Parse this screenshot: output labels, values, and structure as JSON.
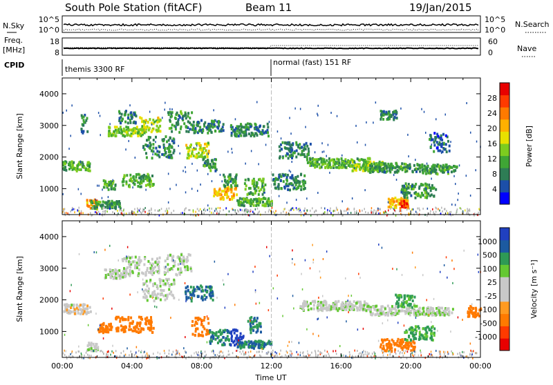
{
  "header": {
    "title": "South Pole Station (fitACF)",
    "beam": "Beam 11",
    "date": "19/Jan/2015"
  },
  "strips": {
    "nsky_label": "N.Sky",
    "nsky_ticks": [
      "10^5",
      "10^0"
    ],
    "nsearch_label": "N.Search",
    "nsearch_ticks": [
      "10^5",
      "10^0"
    ],
    "freq_label": "Freq.",
    "freq_unit": "[MHz]",
    "freq_ticks": [
      "18",
      "8"
    ],
    "nave_label": "Nave",
    "nave_ticks": [
      "60",
      "0"
    ],
    "cpid_label": "CPID",
    "cpid_segments": [
      {
        "start_hour": 0,
        "end_hour": 12,
        "label": "themis 3300 RF"
      },
      {
        "start_hour": 12,
        "end_hour": 24,
        "label": "normal (fast) 151 RF"
      }
    ]
  },
  "colors": {
    "power": [
      "#0000ff",
      "#1c4fa8",
      "#2e7d55",
      "#3fa535",
      "#7dcc1f",
      "#e8e000",
      "#ffb000",
      "#ff7a00",
      "#ff3a00",
      "#e80000"
    ],
    "velocity": [
      "#e80000",
      "#ff3a00",
      "#ff7a00",
      "#ff9a20",
      "#c8c8c8",
      "#c8c8c8",
      "#64c832",
      "#2e9a55",
      "#1c5aa0",
      "#2040c0"
    ],
    "ground": "#b4b4b4"
  },
  "chart_data": [
    {
      "type": "heatmap",
      "panel": "power",
      "ylabel": "Slant Range [km]",
      "xlabel": "",
      "ylim": [
        180,
        4500
      ],
      "xlim": [
        0,
        24
      ],
      "yticks": [
        "1000",
        "2000",
        "3000",
        "4000"
      ],
      "colorbar": {
        "label": "Power [dB]",
        "range": [
          0,
          32
        ],
        "ticks": [
          "4",
          "8",
          "12",
          "16",
          "20",
          "24",
          "28"
        ]
      },
      "blobs": [
        {
          "t0": 0.0,
          "t1": 1.6,
          "r0": 1600,
          "r1": 1900,
          "v": 12
        },
        {
          "t0": 1.0,
          "t1": 1.4,
          "r0": 2800,
          "r1": 3400,
          "v": 8
        },
        {
          "t0": 1.3,
          "t1": 2.0,
          "r0": 420,
          "r1": 700,
          "v": 22
        },
        {
          "t0": 1.6,
          "t1": 3.3,
          "r0": 400,
          "r1": 650,
          "v": 10
        },
        {
          "t0": 2.3,
          "t1": 3.0,
          "r0": 1000,
          "r1": 1300,
          "v": 12
        },
        {
          "t0": 2.6,
          "t1": 4.6,
          "r0": 2700,
          "r1": 3000,
          "v": 14
        },
        {
          "t0": 3.2,
          "t1": 4.2,
          "r0": 3100,
          "r1": 3500,
          "v": 8
        },
        {
          "t0": 3.4,
          "t1": 5.2,
          "r0": 1100,
          "r1": 1500,
          "v": 12
        },
        {
          "t0": 4.4,
          "t1": 5.6,
          "r0": 2800,
          "r1": 3300,
          "v": 16
        },
        {
          "t0": 4.6,
          "t1": 6.4,
          "r0": 2000,
          "r1": 2700,
          "v": 8
        },
        {
          "t0": 6.0,
          "t1": 7.4,
          "r0": 2800,
          "r1": 3500,
          "v": 10
        },
        {
          "t0": 7.0,
          "t1": 8.4,
          "r0": 2000,
          "r1": 2500,
          "v": 16
        },
        {
          "t0": 7.4,
          "t1": 9.2,
          "r0": 2800,
          "r1": 3200,
          "v": 8
        },
        {
          "t0": 8.0,
          "t1": 8.8,
          "r0": 1600,
          "r1": 2000,
          "v": 10
        },
        {
          "t0": 8.6,
          "t1": 10.0,
          "r0": 700,
          "r1": 1100,
          "v": 20
        },
        {
          "t0": 9.2,
          "t1": 10.0,
          "r0": 1100,
          "r1": 1500,
          "v": 10
        },
        {
          "t0": 9.6,
          "t1": 11.8,
          "r0": 2700,
          "r1": 3100,
          "v": 8
        },
        {
          "t0": 10.0,
          "t1": 12.0,
          "r0": 500,
          "r1": 750,
          "v": 12
        },
        {
          "t0": 10.4,
          "t1": 11.6,
          "r0": 850,
          "r1": 1350,
          "v": 12
        },
        {
          "t0": 12.0,
          "t1": 14.0,
          "r0": 1000,
          "r1": 1500,
          "v": 8
        },
        {
          "t0": 12.4,
          "t1": 14.2,
          "r0": 2000,
          "r1": 2500,
          "v": 8
        },
        {
          "t0": 14.0,
          "t1": 17.6,
          "r0": 1700,
          "r1": 2000,
          "v": 12
        },
        {
          "t0": 16.6,
          "t1": 18.4,
          "r0": 1600,
          "r1": 1900,
          "v": 14
        },
        {
          "t0": 17.6,
          "t1": 20.5,
          "r0": 1550,
          "r1": 1850,
          "v": 10
        },
        {
          "t0": 18.2,
          "t1": 19.2,
          "r0": 3200,
          "r1": 3500,
          "v": 8
        },
        {
          "t0": 18.6,
          "t1": 19.8,
          "r0": 400,
          "r1": 750,
          "v": 20
        },
        {
          "t0": 19.3,
          "t1": 19.8,
          "r0": 450,
          "r1": 650,
          "v": 28
        },
        {
          "t0": 19.4,
          "t1": 21.4,
          "r0": 750,
          "r1": 1200,
          "v": 10
        },
        {
          "t0": 20.6,
          "t1": 22.6,
          "r0": 1500,
          "r1": 1800,
          "v": 10
        },
        {
          "t0": 21.0,
          "t1": 22.2,
          "r0": 2200,
          "r1": 2800,
          "v": 6
        }
      ]
    },
    {
      "type": "heatmap",
      "panel": "velocity",
      "ylabel": "Slant Range [km]",
      "xlabel": "Time UT",
      "ylim": [
        180,
        4500
      ],
      "xlim": [
        0,
        24
      ],
      "yticks": [
        "1000",
        "2000",
        "3000",
        "4000"
      ],
      "xticks": [
        "00:00",
        "04:00",
        "08:00",
        "12:00",
        "16:00",
        "20:00",
        "00:00"
      ],
      "colorbar": {
        "label": "Velocity [m s⁻¹]",
        "ticks": [
          "1000",
          "500",
          "100",
          "25",
          "-25",
          "-100",
          "-500",
          "-1000"
        ]
      },
      "blobs": [
        {
          "t0": 0.0,
          "t1": 1.6,
          "r0": 1600,
          "r1": 1900,
          "v": -25
        },
        {
          "t0": 1.3,
          "t1": 2.0,
          "r0": 420,
          "r1": 700,
          "v": 0
        },
        {
          "t0": 2.4,
          "t1": 3.6,
          "r0": 2700,
          "r1": 3000,
          "v": 0
        },
        {
          "t0": 2.0,
          "t1": 2.8,
          "r0": 1000,
          "r1": 1300,
          "v": -300
        },
        {
          "t0": 3.0,
          "t1": 5.2,
          "r0": 1000,
          "r1": 1500,
          "v": -300
        },
        {
          "t0": 3.4,
          "t1": 5.6,
          "r0": 2800,
          "r1": 3400,
          "v": 0
        },
        {
          "t0": 4.6,
          "t1": 6.4,
          "r0": 2000,
          "r1": 2700,
          "v": 0
        },
        {
          "t0": 5.8,
          "t1": 7.4,
          "r0": 2800,
          "r1": 3500,
          "v": 0
        },
        {
          "t0": 7.0,
          "t1": 8.6,
          "r0": 2000,
          "r1": 2500,
          "v": 300
        },
        {
          "t0": 7.4,
          "t1": 8.4,
          "r0": 900,
          "r1": 1500,
          "v": -300
        },
        {
          "t0": 8.4,
          "t1": 9.6,
          "r0": 600,
          "r1": 1100,
          "v": 300
        },
        {
          "t0": 9.6,
          "t1": 10.4,
          "r0": 600,
          "r1": 1100,
          "v": 700
        },
        {
          "t0": 10.0,
          "t1": 12.0,
          "r0": 500,
          "r1": 750,
          "v": 300
        },
        {
          "t0": 10.6,
          "t1": 11.4,
          "r0": 1000,
          "r1": 1500,
          "v": 300
        },
        {
          "t0": 13.6,
          "t1": 17.6,
          "r0": 1700,
          "r1": 2000,
          "v": 0
        },
        {
          "t0": 17.6,
          "t1": 20.5,
          "r0": 1550,
          "r1": 1850,
          "v": 0
        },
        {
          "t0": 19.0,
          "t1": 20.2,
          "r0": 1800,
          "r1": 2200,
          "v": 120
        },
        {
          "t0": 18.2,
          "t1": 20.2,
          "r0": 400,
          "r1": 800,
          "v": -300
        },
        {
          "t0": 19.6,
          "t1": 21.4,
          "r0": 750,
          "r1": 1200,
          "v": 120
        },
        {
          "t0": 20.6,
          "t1": 22.4,
          "r0": 1550,
          "r1": 1800,
          "v": 0
        },
        {
          "t0": 23.2,
          "t1": 24.0,
          "r0": 1500,
          "r1": 1900,
          "v": -200
        }
      ]
    }
  ]
}
